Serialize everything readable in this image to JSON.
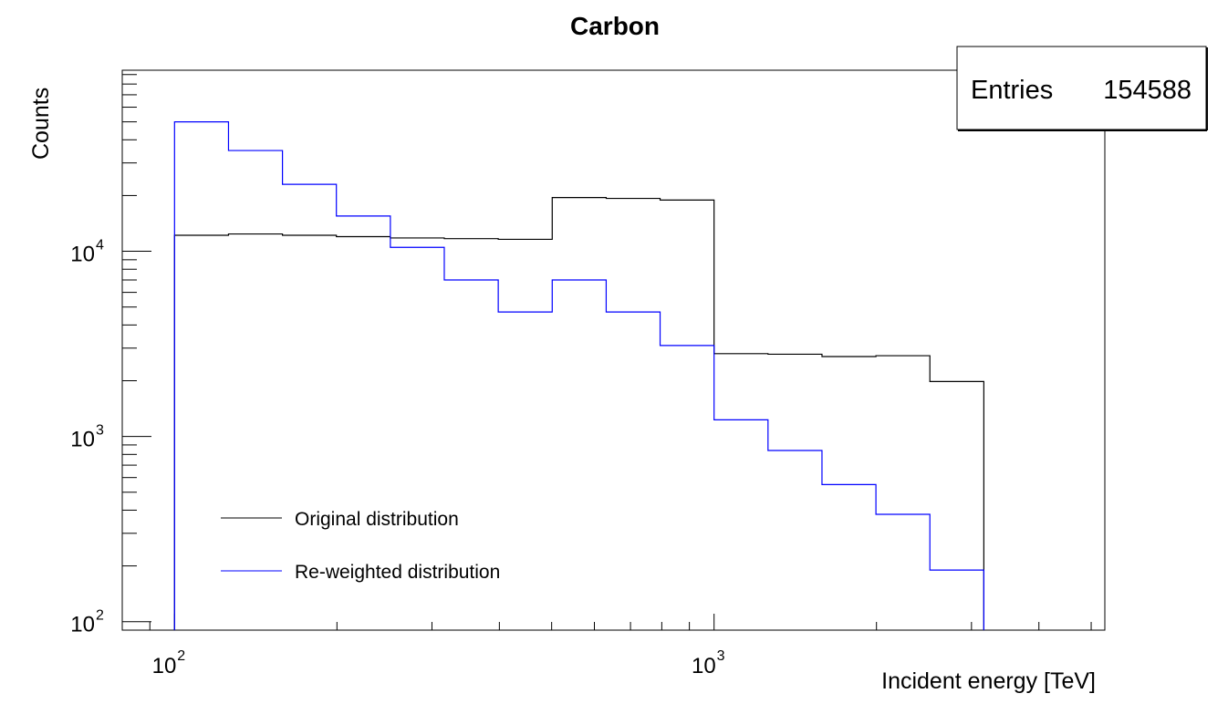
{
  "chart_data": {
    "type": "histogram",
    "title": "Carbon",
    "xlabel": "Incident energy  [TeV]",
    "ylabel": "Counts",
    "x_scale": "log",
    "y_scale": "log",
    "xlim": [
      80,
      5300
    ],
    "ylim": [
      90,
      95000
    ],
    "x_ticks": [
      {
        "base": "10",
        "exp": "2",
        "value": 100
      },
      {
        "base": "10",
        "exp": "3",
        "value": 1000
      }
    ],
    "y_ticks": [
      {
        "base": "10",
        "exp": "2",
        "value": 100
      },
      {
        "base": "10",
        "exp": "3",
        "value": 1000
      },
      {
        "base": "10",
        "exp": "4",
        "value": 10000
      }
    ],
    "bin_edges": [
      100,
      125.9,
      158.5,
      199.5,
      251.2,
      316.2,
      398.1,
      501.2,
      631.0,
      794.3,
      1000,
      1258.9,
      1584.9,
      1995.3,
      2511.9,
      3162.3
    ],
    "series": [
      {
        "name": "Original distribution",
        "color": "#000000",
        "values": [
          12200,
          12400,
          12200,
          12000,
          11800,
          11700,
          11600,
          19500,
          19300,
          18900,
          2800,
          2780,
          2700,
          2730,
          1980
        ]
      },
      {
        "name": "Re-weighted distribution",
        "color": "#0000ff",
        "values": [
          50000,
          35000,
          23000,
          15500,
          10500,
          7000,
          4700,
          7000,
          4700,
          3100,
          1230,
          840,
          550,
          380,
          190
        ]
      }
    ],
    "legend": {
      "position": "bottom-left"
    },
    "stats": {
      "label": "Entries",
      "value": "154588"
    },
    "grid": false
  }
}
